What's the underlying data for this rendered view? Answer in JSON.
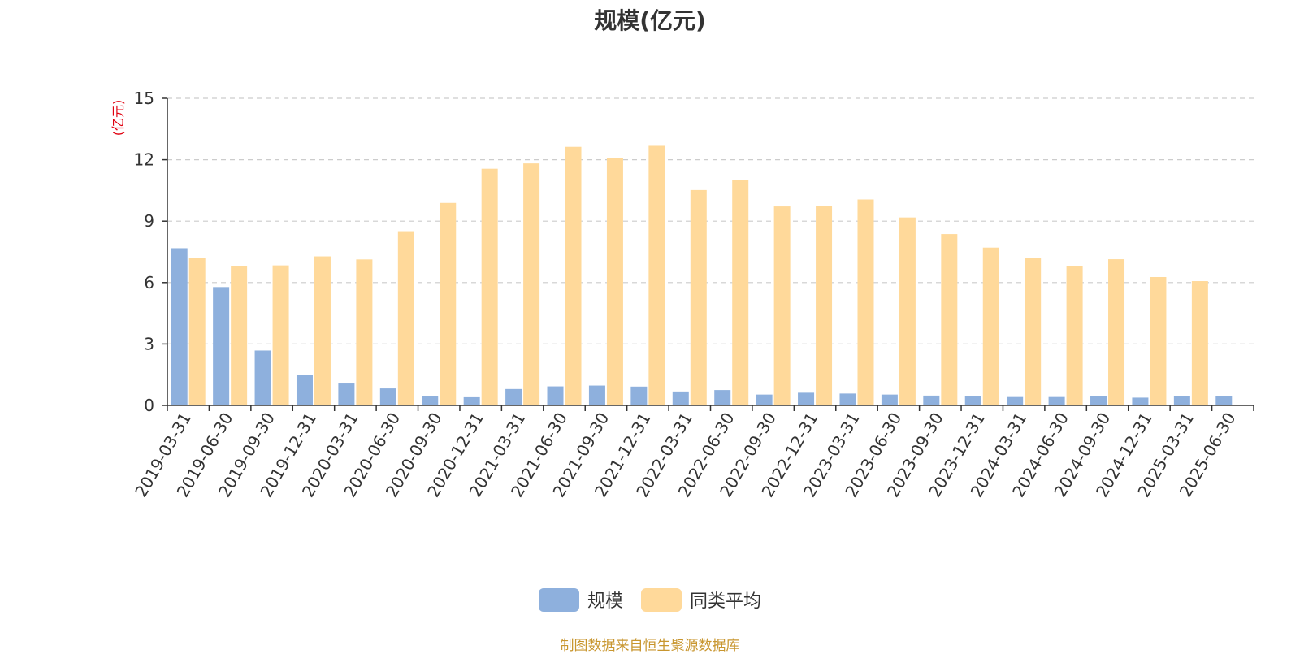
{
  "chart_data": {
    "type": "bar",
    "title": "规模(亿元)",
    "ylabel": "(亿元)",
    "xlabel": "",
    "ylim": [
      0,
      15
    ],
    "yticks": [
      0,
      3,
      6,
      9,
      12,
      15
    ],
    "grid": true,
    "legend_position": "bottom",
    "categories": [
      "2019-03-31",
      "2019-06-30",
      "2019-09-30",
      "2019-12-31",
      "2020-03-31",
      "2020-06-30",
      "2020-09-30",
      "2020-12-31",
      "2021-03-31",
      "2021-06-30",
      "2021-09-30",
      "2021-12-31",
      "2022-03-31",
      "2022-06-30",
      "2022-09-30",
      "2022-12-31",
      "2023-03-31",
      "2023-06-30",
      "2023-09-30",
      "2023-12-31",
      "2024-03-31",
      "2024-06-30",
      "2024-09-30",
      "2024-12-31",
      "2025-03-31",
      "2025-06-30"
    ],
    "series": [
      {
        "name": "规模",
        "color": "#8eb0dd",
        "values": [
          7.68,
          5.78,
          2.68,
          1.48,
          1.07,
          0.83,
          0.45,
          0.4,
          0.8,
          0.93,
          0.97,
          0.92,
          0.68,
          0.75,
          0.53,
          0.62,
          0.58,
          0.53,
          0.48,
          0.45,
          0.41,
          0.41,
          0.46,
          0.38,
          0.45,
          0.44
        ]
      },
      {
        "name": "同类平均",
        "color": "#ffd99a",
        "values": [
          7.21,
          6.8,
          6.84,
          7.28,
          7.13,
          8.51,
          9.89,
          11.56,
          11.82,
          12.63,
          12.09,
          12.68,
          10.52,
          11.03,
          9.72,
          9.74,
          10.06,
          9.18,
          8.37,
          7.71,
          7.2,
          6.81,
          7.14,
          6.27,
          6.07,
          null
        ]
      }
    ]
  },
  "legend": {
    "item1": {
      "label": "规模",
      "color": "#8eb0dd"
    },
    "item2": {
      "label": "同类平均",
      "color": "#ffd99a"
    }
  },
  "footer": {
    "source_note": "制图数据来自恒生聚源数据库"
  }
}
